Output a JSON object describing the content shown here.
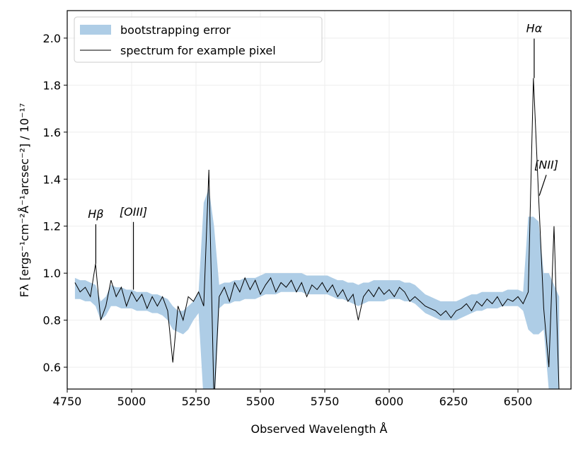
{
  "chart_data": {
    "type": "line",
    "xlabel": "Observed Wavelength Å",
    "ylabel": "Fλ [ergs⁻¹cm⁻²Å⁻¹arcsec⁻²] / 10⁻¹⁷",
    "x": [
      4780,
      4800,
      4820,
      4840,
      4860,
      4880,
      4900,
      4920,
      4940,
      4960,
      4980,
      5000,
      5020,
      5040,
      5060,
      5080,
      5100,
      5120,
      5140,
      5160,
      5180,
      5200,
      5220,
      5240,
      5260,
      5280,
      5300,
      5320,
      5340,
      5360,
      5380,
      5400,
      5420,
      5440,
      5460,
      5480,
      5500,
      5520,
      5540,
      5560,
      5580,
      5600,
      5620,
      5640,
      5660,
      5680,
      5700,
      5720,
      5740,
      5760,
      5780,
      5800,
      5820,
      5840,
      5860,
      5880,
      5900,
      5920,
      5940,
      5960,
      5980,
      6000,
      6020,
      6040,
      6060,
      6080,
      6100,
      6120,
      6140,
      6160,
      6180,
      6200,
      6220,
      6240,
      6260,
      6280,
      6300,
      6320,
      6340,
      6360,
      6380,
      6400,
      6420,
      6440,
      6460,
      6480,
      6500,
      6520,
      6540,
      6560,
      6580,
      6600,
      6620,
      6640,
      6660
    ],
    "band": {
      "name": "bootstrapping error",
      "color": "#aecde6",
      "lower": [
        0.89,
        0.89,
        0.88,
        0.88,
        0.86,
        0.8,
        0.82,
        0.86,
        0.86,
        0.85,
        0.85,
        0.85,
        0.84,
        0.84,
        0.84,
        0.83,
        0.83,
        0.82,
        0.8,
        0.76,
        0.75,
        0.74,
        0.76,
        0.8,
        0.83,
        0.45,
        0.4,
        0.4,
        0.85,
        0.87,
        0.87,
        0.88,
        0.88,
        0.89,
        0.89,
        0.89,
        0.9,
        0.91,
        0.91,
        0.91,
        0.92,
        0.92,
        0.92,
        0.92,
        0.92,
        0.91,
        0.91,
        0.91,
        0.91,
        0.91,
        0.9,
        0.89,
        0.89,
        0.88,
        0.87,
        0.86,
        0.87,
        0.88,
        0.88,
        0.88,
        0.88,
        0.89,
        0.89,
        0.89,
        0.88,
        0.88,
        0.87,
        0.85,
        0.83,
        0.82,
        0.81,
        0.8,
        0.8,
        0.8,
        0.8,
        0.81,
        0.82,
        0.83,
        0.84,
        0.84,
        0.85,
        0.85,
        0.85,
        0.86,
        0.86,
        0.86,
        0.86,
        0.84,
        0.76,
        0.74,
        0.74,
        0.76,
        0.5,
        0.45,
        0.45
      ],
      "upper": [
        0.98,
        0.97,
        0.97,
        0.96,
        0.95,
        0.88,
        0.9,
        0.95,
        0.94,
        0.94,
        0.93,
        0.93,
        0.92,
        0.92,
        0.92,
        0.91,
        0.91,
        0.9,
        0.89,
        0.86,
        0.84,
        0.84,
        0.86,
        0.88,
        0.92,
        1.3,
        1.36,
        1.2,
        0.95,
        0.96,
        0.96,
        0.97,
        0.97,
        0.98,
        0.98,
        0.98,
        0.99,
        1.0,
        1.0,
        1.0,
        1.0,
        1.0,
        1.0,
        1.0,
        1.0,
        0.99,
        0.99,
        0.99,
        0.99,
        0.99,
        0.98,
        0.97,
        0.97,
        0.96,
        0.96,
        0.95,
        0.96,
        0.96,
        0.97,
        0.97,
        0.97,
        0.97,
        0.97,
        0.97,
        0.96,
        0.96,
        0.95,
        0.93,
        0.91,
        0.9,
        0.89,
        0.88,
        0.88,
        0.88,
        0.88,
        0.89,
        0.9,
        0.91,
        0.91,
        0.92,
        0.92,
        0.92,
        0.92,
        0.92,
        0.93,
        0.93,
        0.93,
        0.92,
        1.24,
        1.24,
        1.22,
        1.0,
        1.0,
        0.95,
        0.9
      ]
    },
    "series": [
      {
        "name": "spectrum for example pixel",
        "color": "#000000",
        "values": [
          0.96,
          0.92,
          0.94,
          0.9,
          1.04,
          0.8,
          0.86,
          0.97,
          0.9,
          0.94,
          0.86,
          0.92,
          0.88,
          0.91,
          0.85,
          0.9,
          0.86,
          0.9,
          0.84,
          0.62,
          0.86,
          0.8,
          0.9,
          0.88,
          0.92,
          0.86,
          1.44,
          0.45,
          0.9,
          0.94,
          0.88,
          0.96,
          0.92,
          0.98,
          0.93,
          0.97,
          0.91,
          0.95,
          0.98,
          0.92,
          0.96,
          0.94,
          0.97,
          0.92,
          0.96,
          0.9,
          0.95,
          0.93,
          0.96,
          0.92,
          0.95,
          0.9,
          0.93,
          0.88,
          0.91,
          0.8,
          0.9,
          0.93,
          0.9,
          0.94,
          0.91,
          0.93,
          0.9,
          0.94,
          0.92,
          0.88,
          0.9,
          0.88,
          0.86,
          0.85,
          0.84,
          0.82,
          0.84,
          0.81,
          0.84,
          0.85,
          0.87,
          0.84,
          0.88,
          0.86,
          0.89,
          0.87,
          0.9,
          0.86,
          0.89,
          0.88,
          0.9,
          0.87,
          0.92,
          1.83,
          1.33,
          0.85,
          0.6,
          1.2,
          0.48
        ]
      }
    ],
    "annotations": [
      {
        "text": "Hβ",
        "xy": [
          4861,
          1.04
        ],
        "xytext": [
          4861,
          1.25
        ]
      },
      {
        "text": "[OIII]",
        "xy": [
          5007,
          0.93
        ],
        "xytext": [
          5007,
          1.26
        ]
      },
      {
        "text": "Hα",
        "xy": [
          6563,
          1.83
        ],
        "xytext": [
          6563,
          2.04
        ]
      },
      {
        "text": "[NII]",
        "xy": [
          6583,
          1.33
        ],
        "xytext": [
          6610,
          1.46
        ]
      }
    ],
    "xlim": [
      4750,
      6706
    ],
    "ylim": [
      0.507,
      2.117
    ],
    "xticks": [
      4750,
      5000,
      5250,
      5500,
      5750,
      6000,
      6250,
      6500
    ],
    "yticks": [
      0.6,
      0.8,
      {
        "value": 1,
        "label": "1.0"
      },
      1.2,
      1.4,
      1.6,
      1.8,
      {
        "value": 2,
        "label": "2.0"
      }
    ],
    "grid": true,
    "legend": "upper left"
  }
}
